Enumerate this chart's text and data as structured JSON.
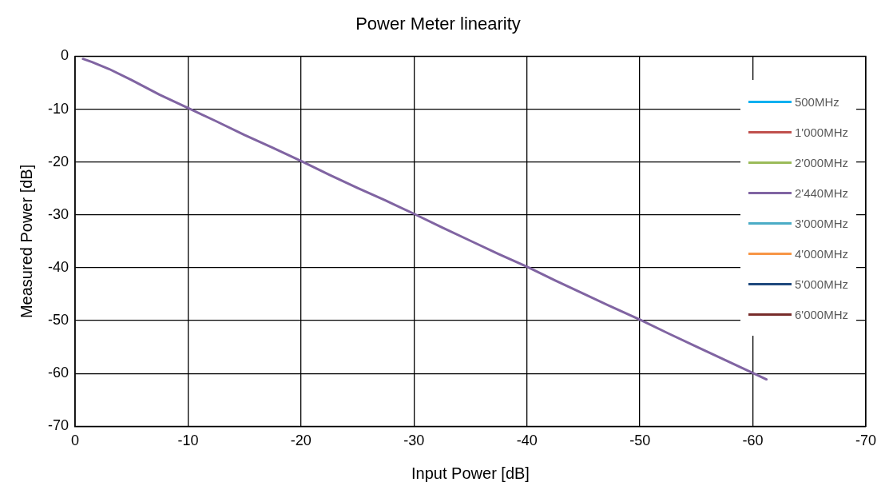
{
  "chart_data": {
    "type": "line",
    "title": "Power Meter linearity",
    "xlabel": "Input Power [dB]",
    "ylabel": "Measured Power [dB]",
    "x": [
      -0.7,
      -1.5,
      -3,
      -5,
      -7.5,
      -10,
      -12.5,
      -15,
      -17.5,
      -20,
      -22.5,
      -25,
      -27.5,
      -30,
      -32.5,
      -35,
      -37.5,
      -40,
      -42.5,
      -45,
      -47.5,
      -50,
      -52.5,
      -55,
      -57.5,
      -60,
      -61.2
    ],
    "series": [
      {
        "name": "500MHz",
        "color": "#00b0f0",
        "values": [
          null,
          null,
          null,
          null,
          null,
          null,
          null,
          null,
          null,
          null,
          null,
          null,
          null,
          null,
          null,
          null,
          null,
          null,
          null,
          null,
          null,
          null,
          null,
          null,
          null,
          null,
          null
        ]
      },
      {
        "name": "1'000MHz",
        "color": "#c0504d",
        "values": [
          null,
          null,
          null,
          null,
          null,
          null,
          null,
          null,
          null,
          null,
          null,
          null,
          null,
          null,
          null,
          null,
          null,
          null,
          null,
          null,
          null,
          null,
          null,
          null,
          null,
          null,
          null
        ]
      },
      {
        "name": "2'000MHz",
        "color": "#9bbb59",
        "values": [
          null,
          null,
          null,
          null,
          null,
          null,
          null,
          null,
          null,
          null,
          null,
          null,
          null,
          null,
          null,
          null,
          null,
          null,
          null,
          null,
          null,
          null,
          null,
          null,
          null,
          null,
          null
        ]
      },
      {
        "name": "2'440MHz",
        "color": "#8064a2",
        "values": [
          -0.5,
          -1.1,
          -2.4,
          -4.5,
          -7.3,
          -9.8,
          -12.3,
          -14.9,
          -17.3,
          -19.8,
          -22.4,
          -24.9,
          -27.3,
          -29.8,
          -32.4,
          -34.9,
          -37.4,
          -39.8,
          -42.4,
          -44.9,
          -47.4,
          -49.8,
          -52.4,
          -54.9,
          -57.4,
          -59.9,
          -61.1
        ]
      },
      {
        "name": "3'000MHz",
        "color": "#4bacc6",
        "values": [
          null,
          null,
          null,
          null,
          null,
          null,
          null,
          null,
          null,
          null,
          null,
          null,
          null,
          null,
          null,
          null,
          null,
          null,
          null,
          null,
          null,
          null,
          null,
          null,
          null,
          null,
          null
        ]
      },
      {
        "name": "4'000MHz",
        "color": "#f79646",
        "values": [
          null,
          null,
          null,
          null,
          null,
          null,
          null,
          null,
          null,
          null,
          null,
          null,
          null,
          null,
          null,
          null,
          null,
          null,
          null,
          null,
          null,
          null,
          null,
          null,
          null,
          null,
          null
        ]
      },
      {
        "name": "5'000MHz",
        "color": "#1f497d",
        "values": [
          null,
          null,
          null,
          null,
          null,
          null,
          null,
          null,
          null,
          null,
          null,
          null,
          null,
          null,
          null,
          null,
          null,
          null,
          null,
          null,
          null,
          null,
          null,
          null,
          null,
          null,
          null
        ]
      },
      {
        "name": "6'000MHz",
        "color": "#772c2a",
        "values": [
          null,
          null,
          null,
          null,
          null,
          null,
          null,
          null,
          null,
          null,
          null,
          null,
          null,
          null,
          null,
          null,
          null,
          null,
          null,
          null,
          null,
          null,
          null,
          null,
          null,
          null,
          null
        ]
      }
    ],
    "xlim": [
      0,
      -70
    ],
    "xticks": [
      0,
      -10,
      -20,
      -30,
      -40,
      -50,
      -60,
      -70
    ],
    "ylim": [
      -70,
      0
    ],
    "yticks": [
      0,
      -10,
      -20,
      -30,
      -40,
      -50,
      -60,
      -70
    ],
    "grid": true,
    "legend": "top right",
    "marker": "none",
    "line_style": "solid"
  }
}
